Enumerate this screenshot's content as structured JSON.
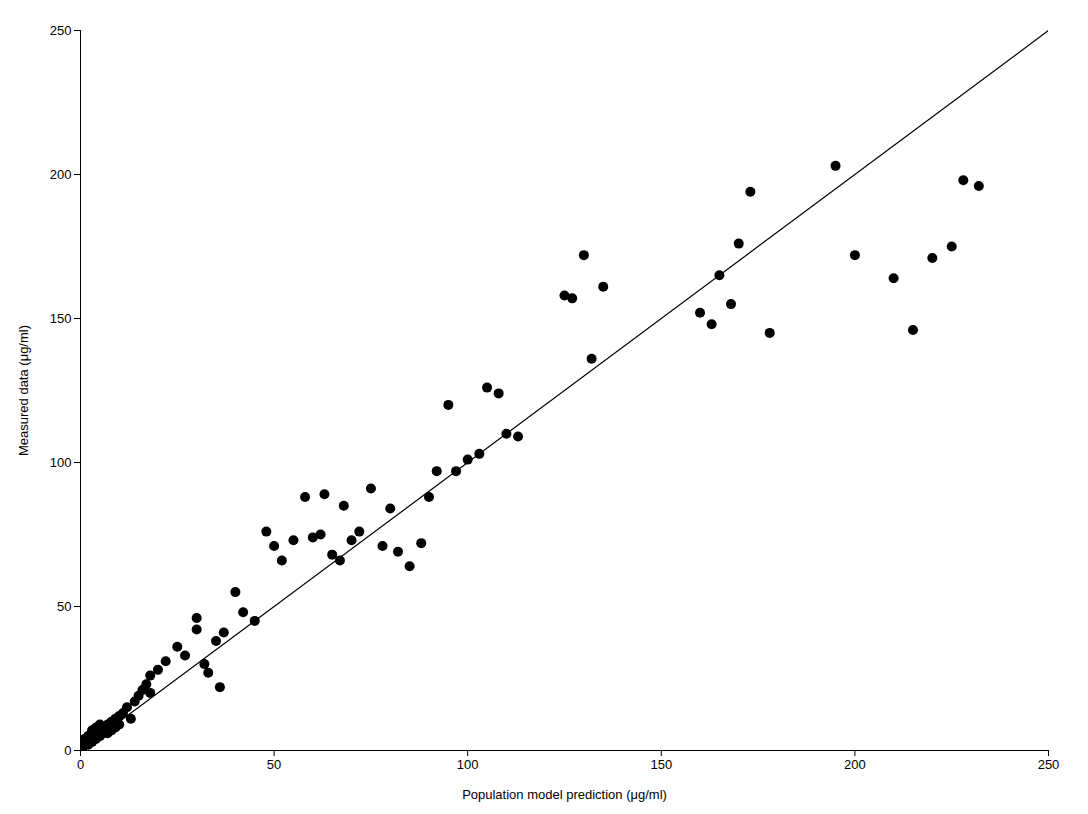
{
  "chart_data": {
    "type": "scatter",
    "xlabel": "Population model prediction (μg/ml)",
    "ylabel": "Measured data (μg/ml)",
    "xlim": [
      0,
      250
    ],
    "ylim": [
      0,
      250
    ],
    "xticks": [
      0,
      50,
      100,
      150,
      200,
      250
    ],
    "yticks": [
      0,
      50,
      100,
      150,
      200,
      250
    ],
    "grid": false,
    "series": [
      {
        "type": "scatter",
        "color": "#000000",
        "marker": "circle",
        "x": [
          0.5,
          1,
          1,
          1.5,
          2,
          2,
          2.5,
          3,
          3,
          3,
          4,
          4,
          4,
          5,
          5,
          5,
          6,
          6,
          7,
          7,
          8,
          8,
          9,
          9,
          10,
          10,
          11,
          12,
          13,
          14,
          15,
          16,
          17,
          18,
          18,
          20,
          22,
          25,
          27,
          30,
          30,
          32,
          33,
          35,
          36,
          37,
          40,
          42,
          45,
          48,
          50,
          52,
          55,
          58,
          60,
          62,
          63,
          65,
          67,
          68,
          70,
          72,
          75,
          78,
          80,
          82,
          85,
          88,
          90,
          92,
          95,
          97,
          100,
          103,
          105,
          108,
          110,
          113,
          125,
          127,
          130,
          132,
          135,
          160,
          163,
          165,
          168,
          170,
          173,
          178,
          195,
          200,
          210,
          215,
          220,
          225,
          228,
          232
        ],
        "values": [
          1,
          2,
          4,
          3,
          5,
          2,
          4,
          6,
          3,
          7,
          5,
          8,
          4,
          7,
          5,
          9,
          6,
          8,
          9,
          6,
          10,
          7,
          8,
          11,
          12,
          9,
          13,
          15,
          11,
          17,
          19,
          21,
          23,
          26,
          20,
          28,
          31,
          36,
          33,
          42,
          46,
          30,
          27,
          38,
          22,
          41,
          55,
          48,
          45,
          76,
          71,
          66,
          73,
          88,
          74,
          75,
          89,
          68,
          66,
          85,
          73,
          76,
          91,
          71,
          84,
          69,
          64,
          72,
          88,
          97,
          120,
          97,
          101,
          103,
          126,
          124,
          110,
          109,
          158,
          157,
          172,
          136,
          161,
          152,
          148,
          165,
          155,
          176,
          194,
          145,
          203,
          172,
          164,
          146,
          171,
          175,
          198,
          196
        ]
      },
      {
        "type": "line",
        "color": "#000000",
        "line_style": "solid",
        "x": [
          0,
          250
        ],
        "values": [
          0,
          250
        ]
      }
    ]
  }
}
